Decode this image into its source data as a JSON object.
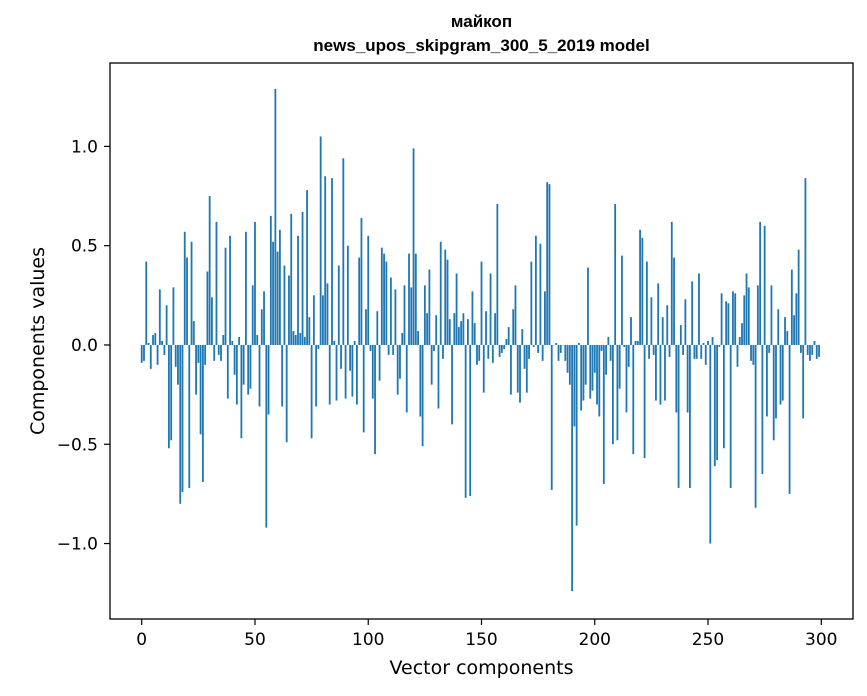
{
  "chart_data": {
    "type": "bar",
    "title_line1": "майкоп",
    "title_line2": "news_upos_skipgram_300_5_2019 model",
    "xlabel": "Vector components",
    "ylabel": "Components values",
    "xlim": [
      -14,
      314
    ],
    "ylim": [
      -1.38,
      1.42
    ],
    "xticks": [
      0,
      50,
      100,
      150,
      200,
      250,
      300
    ],
    "xtick_labels": [
      "0",
      "50",
      "100",
      "150",
      "200",
      "250",
      "300"
    ],
    "yticks": [
      -1.0,
      -0.5,
      0.0,
      0.5,
      1.0
    ],
    "ytick_labels": [
      "−1.0",
      "−0.5",
      "0.0",
      "0.5",
      "1.0"
    ],
    "bar_color": "#1f77b4",
    "grid": false,
    "values": [
      -0.09,
      -0.08,
      0.42,
      0.01,
      -0.12,
      0.05,
      0.06,
      -0.1,
      0.28,
      0.02,
      -0.05,
      0.2,
      -0.52,
      -0.48,
      0.29,
      -0.11,
      -0.2,
      -0.8,
      -0.74,
      0.57,
      0.44,
      -0.72,
      0.52,
      0.12,
      -0.25,
      -0.09,
      -0.45,
      -0.69,
      -0.1,
      0.37,
      0.75,
      0.24,
      -0.08,
      0.62,
      -0.05,
      -0.08,
      0.05,
      0.49,
      -0.27,
      0.55,
      0.02,
      -0.15,
      -0.3,
      0.04,
      -0.47,
      -0.2,
      0.57,
      -0.25,
      -0.22,
      0.3,
      0.62,
      0.05,
      -0.31,
      0.18,
      0.27,
      -0.92,
      -0.35,
      0.65,
      0.52,
      1.29,
      0.47,
      0.58,
      -0.31,
      0.4,
      -0.49,
      0.35,
      0.66,
      0.07,
      0.05,
      0.55,
      0.06,
      0.67,
      0.04,
      0.78,
      0.14,
      -0.47,
      0.25,
      -0.31,
      -0.02,
      1.05,
      0.25,
      0.85,
      0.31,
      -0.3,
      0.84,
      0.02,
      -0.28,
      0.4,
      -0.12,
      0.94,
      -0.27,
      0.5,
      -0.13,
      -0.26,
      0.02,
      -0.3,
      0.44,
      0.64,
      -0.44,
      0.18,
      0.55,
      -0.03,
      -0.27,
      -0.55,
      0.17,
      -0.18,
      0.49,
      0.46,
      0.42,
      -0.05,
      0.34,
      -0.05,
      0.28,
      -0.25,
      -0.17,
      0.06,
      0.3,
      -0.34,
      0.46,
      0.29,
      0.99,
      0.46,
      0.07,
      -0.36,
      -0.51,
      0.3,
      0.16,
      0.38,
      -0.2,
      -0.03,
      0.15,
      -0.32,
      0.52,
      -0.07,
      0.48,
      0.43,
      0.13,
      -0.4,
      0.16,
      0.36,
      0.09,
      0.12,
      0.16,
      -0.77,
      0.13,
      -0.76,
      0.27,
      0.11,
      -0.1,
      -0.08,
      0.42,
      -0.24,
      0.17,
      -0.07,
      0.36,
      -0.09,
      0.16,
      0.71,
      -0.06,
      -0.04,
      -0.02,
      0.03,
      0.09,
      -0.25,
      0.18,
      0.3,
      -0.24,
      -0.29,
      0.08,
      -0.12,
      -0.24,
      -0.07,
      0.42,
      -0.01,
      0.55,
      -0.04,
      0.51,
      -0.08,
      0.27,
      0.82,
      0.81,
      -0.73,
      0.0,
      0.01,
      -0.08,
      -0.04,
      0.0,
      -0.08,
      -0.14,
      -0.2,
      -1.24,
      -0.41,
      -0.91,
      0.01,
      -0.33,
      -0.28,
      -0.2,
      0.39,
      -0.27,
      -0.23,
      -0.14,
      -0.3,
      -0.36,
      -0.03,
      -0.7,
      -0.15,
      0.04,
      -0.08,
      -0.5,
      0.71,
      -0.48,
      -0.22,
      0.45,
      -0.01,
      -0.34,
      -0.11,
      0.14,
      -0.55,
      0.02,
      0.02,
      0.58,
      0.54,
      -0.57,
      0.42,
      -0.07,
      0.24,
      -0.05,
      -0.28,
      0.31,
      -0.3,
      0.14,
      -0.28,
      0.2,
      -0.06,
      0.62,
      0.44,
      -0.34,
      -0.72,
      0.1,
      -0.05,
      0.23,
      -0.34,
      -0.72,
      0.32,
      -0.07,
      -0.07,
      0.36,
      -0.07,
      0.01,
      -0.1,
      0.02,
      -1.0,
      0.04,
      -0.61,
      -0.58,
      -0.01,
      0.26,
      -0.52,
      0.22,
      0.21,
      -0.72,
      0.27,
      0.26,
      -0.11,
      0.04,
      0.11,
      0.25,
      0.36,
      0.29,
      -0.08,
      -0.1,
      -0.82,
      0.3,
      0.62,
      -0.65,
      0.6,
      -0.36,
      -0.04,
      0.3,
      -0.48,
      -0.37,
      0.18,
      -0.3,
      -0.28,
      0.14,
      0.07,
      -0.75,
      0.38,
      0.15,
      0.26,
      0.48,
      -0.04,
      -0.37,
      0.84,
      -0.05,
      -0.08,
      -0.05,
      0.02,
      -0.07,
      -0.06
    ]
  }
}
